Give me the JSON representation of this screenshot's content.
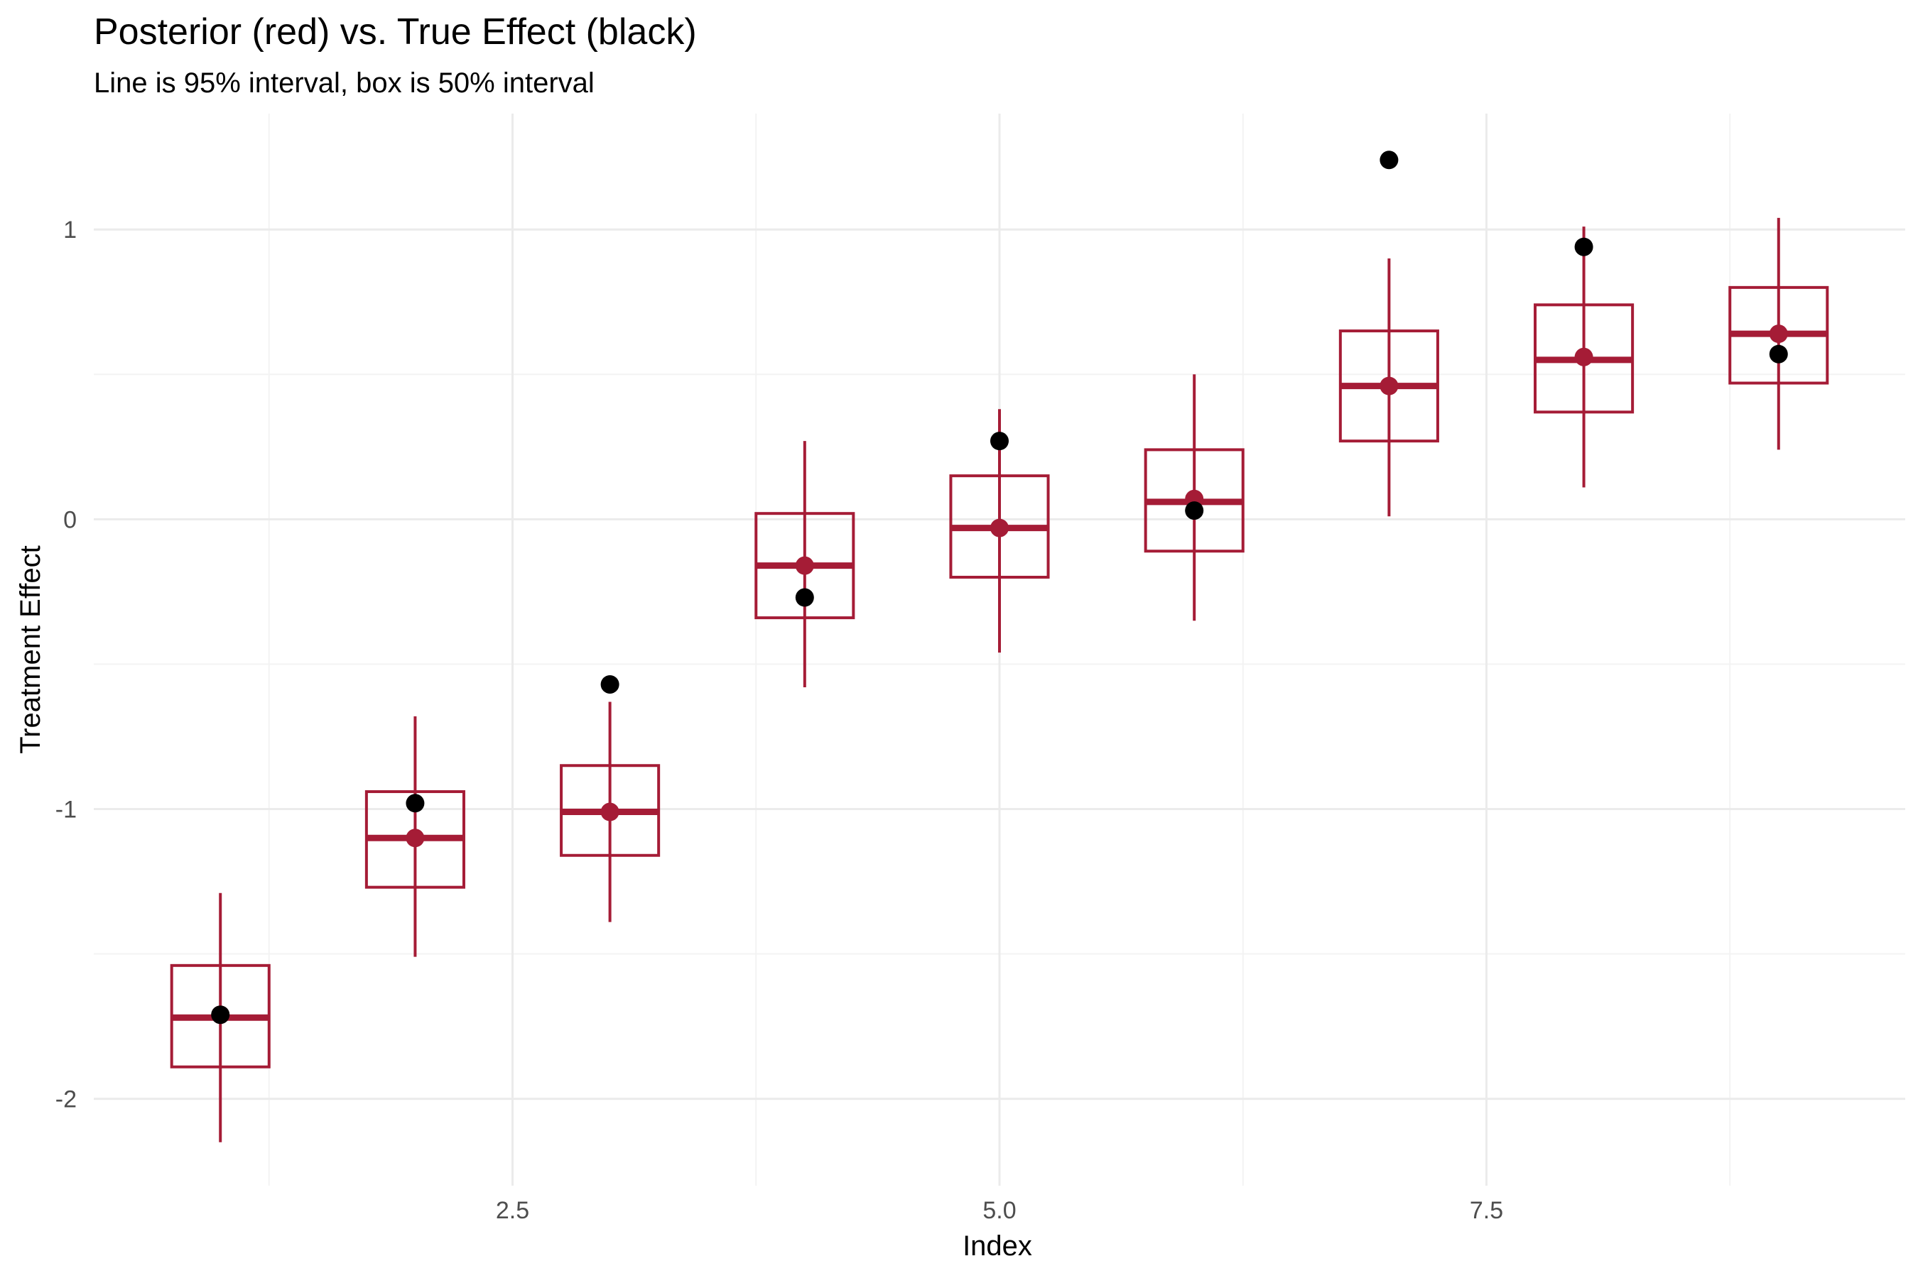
{
  "chart_data": {
    "type": "interval",
    "title": "Posterior (red) vs. True Effect (black)",
    "subtitle": "Line is 95% interval, box is 50% interval",
    "xlabel": "Index",
    "ylabel": "Treatment Effect",
    "xlim": [
      0.35,
      9.65
    ],
    "ylim": [
      -2.3,
      1.4
    ],
    "x_ticks": [
      2.5,
      5.0,
      7.5
    ],
    "x_tick_labels": [
      "2.5",
      "5.0",
      "7.5"
    ],
    "y_ticks": [
      -2,
      -1,
      0,
      1
    ],
    "y_tick_labels": [
      "-2",
      "-1",
      "0",
      "1"
    ],
    "grid": true,
    "colors": {
      "posterior": "#a51c36",
      "true_effect": "#000000",
      "grid_major": "#ebebeb",
      "grid_minor": "#f3f3f3"
    },
    "series": [
      {
        "name": "Posterior",
        "x": [
          1,
          2,
          3,
          4,
          5,
          6,
          7,
          8,
          9
        ],
        "median": [
          -1.72,
          -1.1,
          -1.01,
          -0.16,
          -0.03,
          0.06,
          0.46,
          0.55,
          0.64
        ],
        "q25": [
          -1.89,
          -1.27,
          -1.16,
          -0.34,
          -0.2,
          -0.11,
          0.27,
          0.37,
          0.47
        ],
        "q75": [
          -1.54,
          -0.94,
          -0.85,
          0.02,
          0.15,
          0.24,
          0.65,
          0.74,
          0.8
        ],
        "lower95": [
          -2.15,
          -1.51,
          -1.39,
          -0.58,
          -0.46,
          -0.35,
          0.01,
          0.11,
          0.24
        ],
        "upper95": [
          -1.29,
          -0.68,
          -0.63,
          0.27,
          0.38,
          0.5,
          0.9,
          1.01,
          1.04
        ],
        "mean": [
          -1.71,
          -1.1,
          -1.01,
          -0.16,
          -0.03,
          0.07,
          0.46,
          0.56,
          0.64
        ]
      },
      {
        "name": "True Effect",
        "x": [
          1,
          2,
          3,
          4,
          5,
          6,
          7,
          8,
          9
        ],
        "values": [
          -1.71,
          -0.98,
          -0.57,
          -0.27,
          0.27,
          0.03,
          1.24,
          0.94,
          0.57
        ]
      }
    ]
  }
}
